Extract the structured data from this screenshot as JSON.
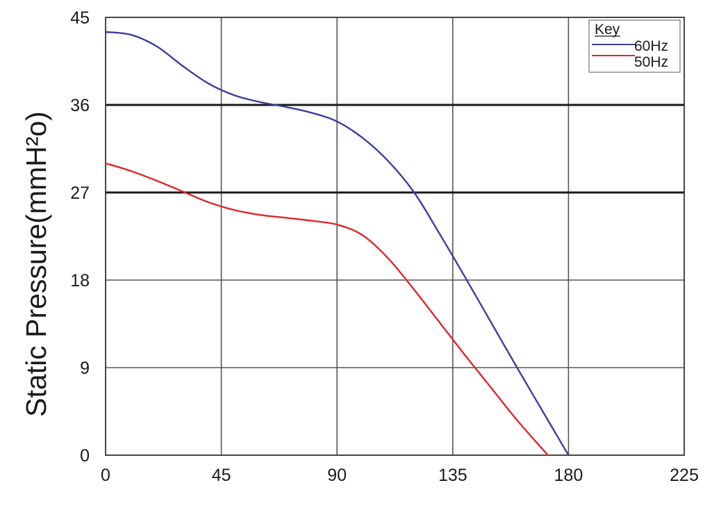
{
  "chart_data": {
    "type": "line",
    "title": "",
    "xlabel": "",
    "ylabel": "Static Pressure(mmH²o)",
    "xlim": [
      0,
      225
    ],
    "ylim": [
      0,
      45
    ],
    "x_ticks": [
      "0",
      "45",
      "90",
      "135",
      "180",
      "225"
    ],
    "y_ticks": [
      "0",
      "9",
      "18",
      "27",
      "36",
      "45"
    ],
    "grid": true,
    "legend": {
      "title": "Key",
      "position": "top-right"
    },
    "series": [
      {
        "name": "60Hz",
        "color": "#3a3f9e",
        "points": [
          [
            0,
            43.5
          ],
          [
            10,
            43.2
          ],
          [
            20,
            42.0
          ],
          [
            30,
            40.0
          ],
          [
            40,
            38.2
          ],
          [
            50,
            37.0
          ],
          [
            60,
            36.3
          ],
          [
            70,
            35.8
          ],
          [
            80,
            35.2
          ],
          [
            90,
            34.3
          ],
          [
            100,
            32.6
          ],
          [
            110,
            30.2
          ],
          [
            120,
            27.0
          ],
          [
            130,
            22.7
          ],
          [
            140,
            18.2
          ],
          [
            150,
            13.6
          ],
          [
            160,
            9.0
          ],
          [
            170,
            4.5
          ],
          [
            180,
            0
          ]
        ]
      },
      {
        "name": "50Hz",
        "color": "#e0262b",
        "points": [
          [
            0,
            30.0
          ],
          [
            10,
            29.2
          ],
          [
            20,
            28.2
          ],
          [
            30,
            27.1
          ],
          [
            40,
            26.0
          ],
          [
            50,
            25.2
          ],
          [
            60,
            24.7
          ],
          [
            70,
            24.4
          ],
          [
            80,
            24.1
          ],
          [
            90,
            23.7
          ],
          [
            100,
            22.6
          ],
          [
            110,
            20.2
          ],
          [
            120,
            17.0
          ],
          [
            130,
            13.6
          ],
          [
            140,
            10.2
          ],
          [
            150,
            6.9
          ],
          [
            160,
            3.6
          ],
          [
            172,
            0
          ]
        ]
      }
    ]
  }
}
